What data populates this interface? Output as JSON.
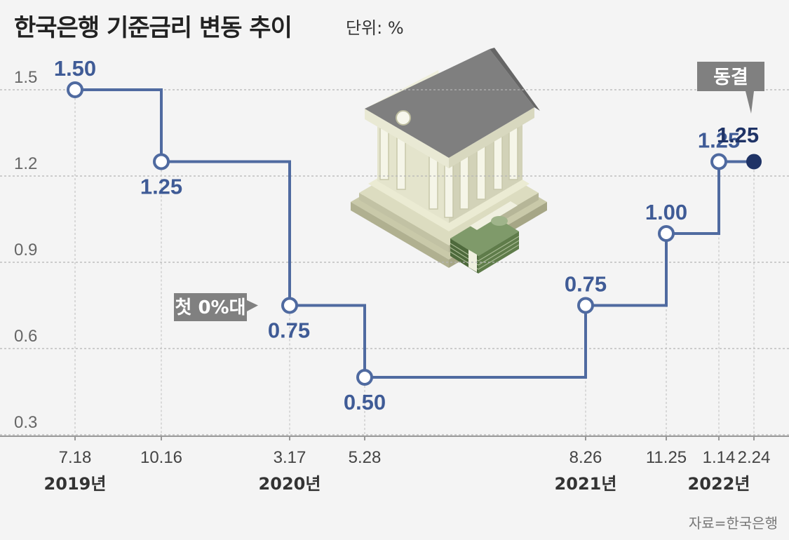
{
  "header": {
    "title": "한국은행 기준금리 변동 추이",
    "unit": "단위: %"
  },
  "source": "자료=한국은행",
  "colors": {
    "line": "#4f6aa0",
    "label": "#3f5b96",
    "callout": "#808080",
    "final_point": "#1f3366"
  },
  "icons": [
    "bank-building-icon",
    "money-stack-icon"
  ],
  "chart_data": {
    "type": "line",
    "step": true,
    "x": [
      "7.18",
      "10.16",
      "3.17",
      "5.28",
      "8.26",
      "11.25",
      "1.14",
      "2.24"
    ],
    "years": [
      {
        "label": "2019년",
        "at": "7.18"
      },
      {
        "label": "2020년",
        "at": "3.17"
      },
      {
        "label": "2021년",
        "at": "8.26"
      },
      {
        "label": "2022년",
        "at": "1.14"
      }
    ],
    "series": [
      {
        "values": [
          1.5,
          1.25,
          0.75,
          0.5,
          0.75,
          1.0,
          1.25,
          1.25
        ],
        "labels": [
          "1.50",
          "1.25",
          "0.75",
          "0.50",
          "0.75",
          "1.00",
          "1.25",
          ""
        ]
      }
    ],
    "yticks": [
      "1.5",
      "1.2",
      "0.9",
      "0.6",
      "0.3"
    ],
    "ylim": [
      0.3,
      1.5
    ],
    "grid": true,
    "annotations": [
      {
        "text": "첫 0%대",
        "at": "3.17"
      },
      {
        "text": "동결",
        "at": "2.24"
      }
    ]
  }
}
